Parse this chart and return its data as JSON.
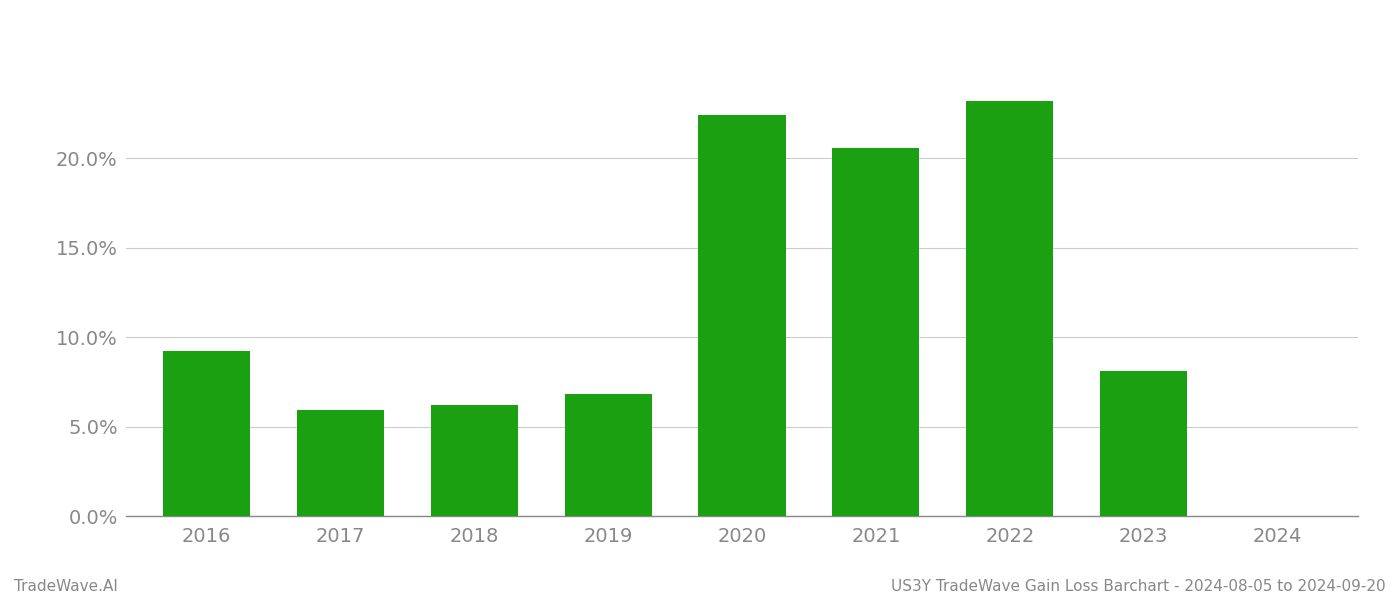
{
  "years": [
    2016,
    2017,
    2018,
    2019,
    2020,
    2021,
    2022,
    2023,
    2024
  ],
  "values": [
    0.092,
    0.059,
    0.062,
    0.068,
    0.224,
    0.206,
    0.232,
    0.081,
    0.0
  ],
  "bar_color": "#1aa010",
  "background_color": "#ffffff",
  "grid_color": "#cccccc",
  "axis_color": "#888888",
  "tick_color": "#888888",
  "ylim": [
    0,
    0.265
  ],
  "yticks": [
    0.0,
    0.05,
    0.1,
    0.15,
    0.2
  ],
  "footer_left": "TradeWave.AI",
  "footer_right": "US3Y TradeWave Gain Loss Barchart - 2024-08-05 to 2024-09-20",
  "bar_width": 0.65,
  "tick_fontsize": 14,
  "footer_fontsize": 11
}
